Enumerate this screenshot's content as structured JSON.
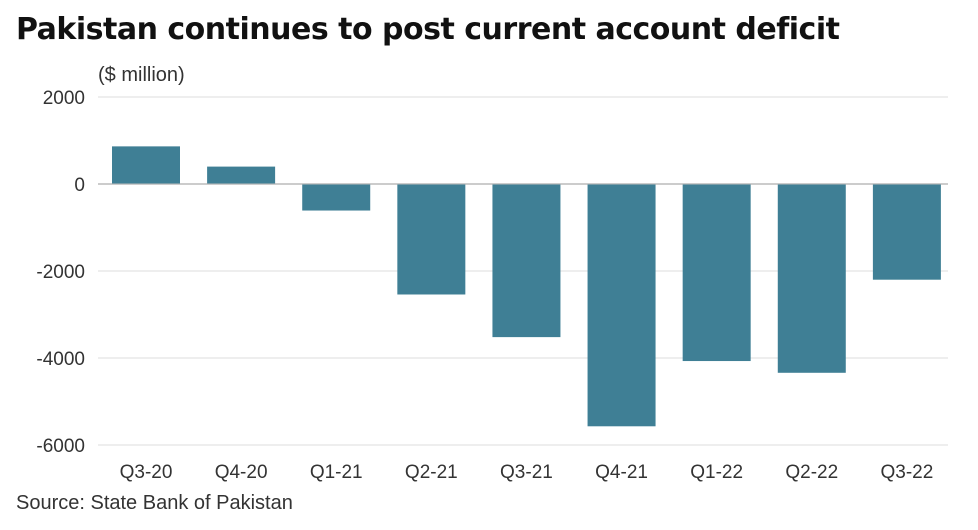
{
  "title": "Pakistan continues to post current account deficit",
  "units": "($ million)",
  "source": "Source: State Bank of Pakistan",
  "colors": {
    "bar": "#3f7f95",
    "grid": "#dddddd",
    "zero_line": "#bbbbbb",
    "text": "#333333"
  },
  "chart_data": {
    "type": "bar",
    "title": "Pakistan continues to post current account deficit",
    "ylabel": "($ million)",
    "xlabel": "",
    "categories": [
      "Q3-20",
      "Q4-20",
      "Q1-21",
      "Q2-21",
      "Q3-21",
      "Q4-21",
      "Q1-22",
      "Q2-22",
      "Q3-22"
    ],
    "values": [
      865,
      400,
      -610,
      -2540,
      -3520,
      -5570,
      -4070,
      -4340,
      -2200
    ],
    "ylim": [
      -6000,
      2000
    ],
    "yticks": [
      2000,
      0,
      -2000,
      -4000,
      -6000
    ],
    "ytick_labels": [
      "2000",
      "0",
      "-2000",
      "-4000",
      "-6000"
    ],
    "grid": true,
    "legend": "none"
  }
}
